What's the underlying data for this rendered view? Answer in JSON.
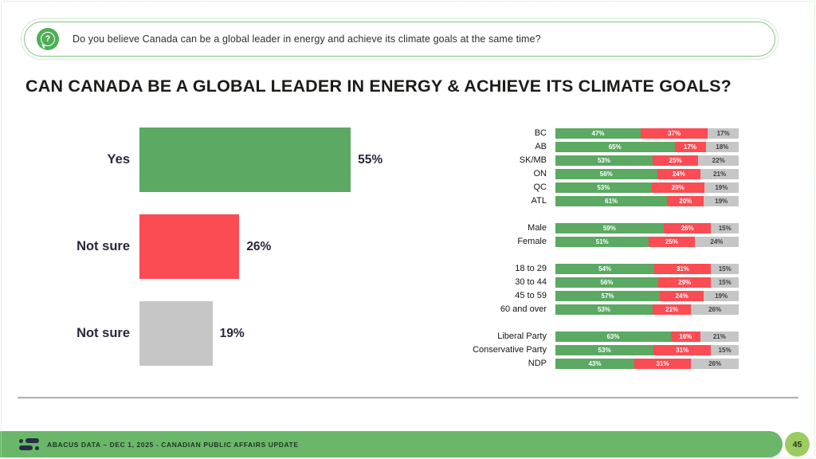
{
  "question_box": {
    "icon_glyph": "?",
    "text": "Do you believe Canada can be a global leader in energy and achieve its climate goals at the same time?"
  },
  "title": "CAN CANADA BE A GLOBAL LEADER IN ENERGY & ACHIEVE ITS CLIMATE GOALS?",
  "colors": {
    "yes_green": "#5BA963",
    "notsure_red": "#FB4B53",
    "notsure_gray": "#C6C6C6",
    "footer_green": "#6AB76A",
    "page_badge_green": "#9BCB61",
    "question_icon_green": "#4FAF55"
  },
  "chart_data": [
    {
      "type": "bar",
      "name": "overall-responses",
      "orientation": "horizontal",
      "categories": [
        "Yes",
        "Not sure",
        "Not sure"
      ],
      "values": [
        55,
        26,
        19
      ],
      "value_labels": [
        "55%",
        "26%",
        "19%"
      ],
      "bar_colors": [
        "#5BA963",
        "#FB4B53",
        "#C6C6C6"
      ],
      "xlim": [
        0,
        100
      ],
      "grid": false,
      "legend": false
    },
    {
      "type": "bar",
      "subtype": "stacked-100",
      "name": "responses-by-demographic",
      "orientation": "horizontal",
      "series_names": [
        "Yes",
        "Not sure",
        "Not sure"
      ],
      "series_colors": [
        "#5BA963",
        "#FB4B53",
        "#C6C6C6"
      ],
      "grid": false,
      "legend": false,
      "groups": [
        {
          "name": "region",
          "rows": [
            {
              "label": "BC",
              "values": [
                47,
                37,
                17
              ]
            },
            {
              "label": "AB",
              "values": [
                65,
                17,
                18
              ]
            },
            {
              "label": "SK/MB",
              "values": [
                53,
                25,
                22
              ]
            },
            {
              "label": "ON",
              "values": [
                56,
                24,
                21
              ]
            },
            {
              "label": "QC",
              "values": [
                53,
                29,
                19
              ]
            },
            {
              "label": "ATL",
              "values": [
                61,
                20,
                19
              ]
            }
          ]
        },
        {
          "name": "gender",
          "rows": [
            {
              "label": "Male",
              "values": [
                59,
                26,
                15
              ]
            },
            {
              "label": "Female",
              "values": [
                51,
                25,
                24
              ]
            }
          ]
        },
        {
          "name": "age",
          "rows": [
            {
              "label": "18 to 29",
              "values": [
                54,
                31,
                15
              ]
            },
            {
              "label": "30 to 44",
              "values": [
                56,
                29,
                15
              ]
            },
            {
              "label": "45 to 59",
              "values": [
                57,
                24,
                19
              ]
            },
            {
              "label": "60 and over",
              "values": [
                53,
                21,
                26
              ]
            }
          ]
        },
        {
          "name": "party",
          "rows": [
            {
              "label": "Liberal Party",
              "values": [
                63,
                16,
                21
              ]
            },
            {
              "label": "Conservative Party",
              "values": [
                53,
                31,
                15
              ]
            },
            {
              "label": "NDP",
              "values": [
                43,
                31,
                26
              ]
            }
          ]
        }
      ]
    }
  ],
  "footer": {
    "text": "ABACUS DATA  – DEC 1, 2025 - CANADIAN PUBLIC AFFAIRS UPDATE",
    "page": "45"
  }
}
